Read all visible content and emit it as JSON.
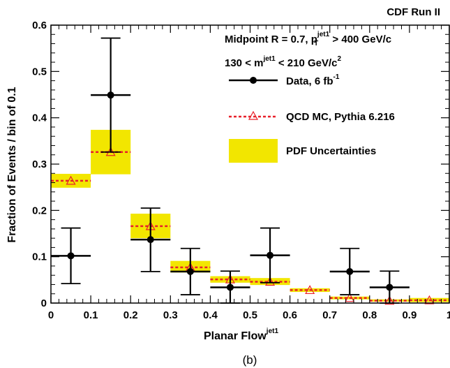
{
  "chart_data": {
    "type": "scatter",
    "experiment_label": "CDF Run II",
    "xlabel": {
      "main": "Planar Flow",
      "sup": "jet1"
    },
    "ylabel": "Fraction of Events / bin of 0.1",
    "xlim": [
      0,
      1
    ],
    "ylim": [
      0,
      0.6
    ],
    "x_ticks": [
      "0",
      "0.1",
      "0.2",
      "0.3",
      "0.4",
      "0.5",
      "0.6",
      "0.7",
      "0.8",
      "0.9",
      "1"
    ],
    "y_ticks": [
      "0",
      "0.1",
      "0.2",
      "0.3",
      "0.4",
      "0.5",
      "0.6"
    ],
    "annotations": {
      "line1": {
        "a": "Midpoint R = 0.7, p",
        "sup": "jet1",
        "sub": "T",
        "b": " > 400 GeV/c"
      },
      "line2": {
        "a": "130 < m",
        "sup1": "jet1",
        "b": " < 210 GeV/c",
        "sup2": "2"
      }
    },
    "legend": {
      "data": {
        "main": "Data, 6 fb",
        "sup": "-1"
      },
      "mc": "QCD MC, Pythia 6.216",
      "band": "PDF Uncertainties"
    },
    "caption": "(b)",
    "data": {
      "x": [
        0.05,
        0.15,
        0.25,
        0.35,
        0.45,
        0.55,
        0.65,
        0.75,
        0.85,
        0.95
      ],
      "y": [
        0.102,
        0.449,
        0.137,
        0.068,
        0.034,
        0.103,
        null,
        0.068,
        0.034,
        null
      ],
      "y_err_high": [
        0.162,
        0.572,
        0.205,
        0.118,
        0.069,
        0.162,
        null,
        0.118,
        0.069,
        null
      ],
      "y_err_low": [
        0.042,
        0.326,
        0.068,
        0.018,
        0.0,
        0.044,
        null,
        0.018,
        0.0,
        null
      ]
    },
    "mc": {
      "x": [
        0.05,
        0.15,
        0.25,
        0.35,
        0.45,
        0.55,
        0.65,
        0.75,
        0.85,
        0.95
      ],
      "y": [
        0.264,
        0.326,
        0.166,
        0.077,
        0.051,
        0.046,
        0.028,
        0.011,
        0.005,
        0.006
      ]
    },
    "pdf_band": {
      "low": [
        0.249,
        0.278,
        0.14,
        0.066,
        0.044,
        0.039,
        0.024,
        0.008,
        0.003,
        0.002
      ],
      "high": [
        0.279,
        0.374,
        0.193,
        0.091,
        0.058,
        0.054,
        0.032,
        0.014,
        0.008,
        0.011
      ]
    },
    "colors": {
      "data": "#000000",
      "mc": "#e8202a",
      "band": "#f2e600"
    }
  }
}
